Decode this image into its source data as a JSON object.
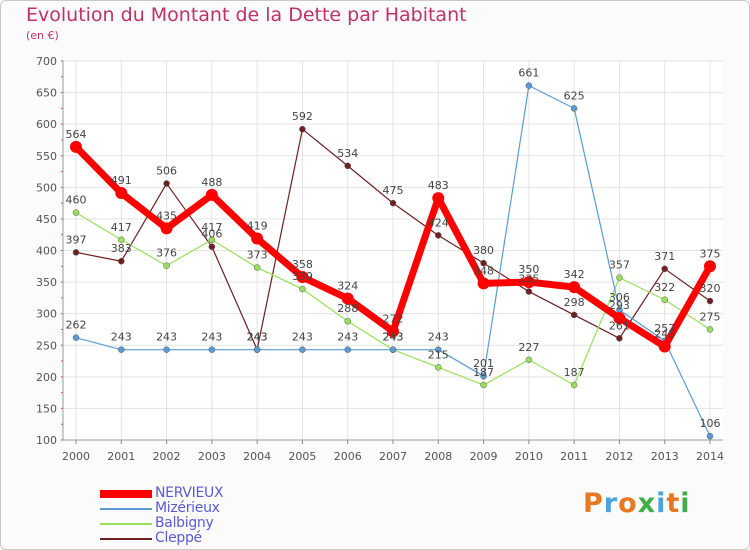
{
  "chart_data": {
    "type": "line",
    "title": "Evolution du Montant de la Dette par Habitant",
    "subtitle": "(en €)",
    "x": [
      "2000",
      "2001",
      "2002",
      "2003",
      "2004",
      "2005",
      "2006",
      "2007",
      "2008",
      "2009",
      "2010",
      "2011",
      "2012",
      "2013",
      "2014"
    ],
    "ylim": [
      100,
      700
    ],
    "yticks": [
      100,
      150,
      200,
      250,
      300,
      350,
      400,
      450,
      500,
      550,
      600,
      650,
      700
    ],
    "grid": true,
    "legend_position": "bottom-left",
    "series": [
      {
        "name": "NERVIEUX",
        "color": "#ff0000",
        "values": [
          564,
          491,
          435,
          488,
          419,
          358,
          324,
          272,
          483,
          348,
          350,
          342,
          293,
          248,
          375
        ]
      },
      {
        "name": "Mizérieux",
        "color": "#5b9bd5",
        "values": [
          262,
          243,
          243,
          243,
          243,
          243,
          243,
          243,
          243,
          201,
          661,
          625,
          306,
          257,
          106
        ]
      },
      {
        "name": "Balbigny",
        "color": "#99e05a",
        "values": [
          460,
          417,
          376,
          417,
          373,
          339,
          288,
          243,
          215,
          187,
          227,
          187,
          357,
          322,
          275
        ]
      },
      {
        "name": "Cleppé",
        "color": "#6e1f1f",
        "values": [
          397,
          383,
          506,
          406,
          243,
          592,
          534,
          475,
          424,
          380,
          335,
          298,
          261,
          371,
          320
        ]
      }
    ]
  },
  "logo": {
    "text": "Proxiti",
    "colors": [
      "#e87722",
      "#4aa3df",
      "#e87722",
      "#3fae49",
      "#4aa3df",
      "#e87722",
      "#3fae49"
    ]
  }
}
